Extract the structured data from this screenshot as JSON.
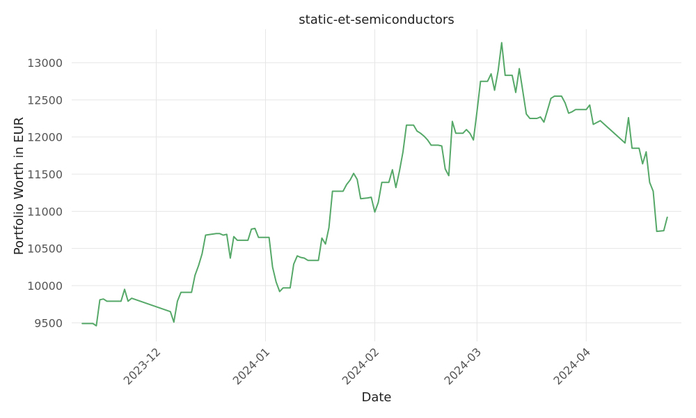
{
  "chart_data": {
    "type": "line",
    "title": "static-et-semiconductors",
    "xlabel": "Date",
    "ylabel": "Portfolio Worth in EUR",
    "ylim": [
      9250,
      13450
    ],
    "xlim": [
      "2023-11-07",
      "2024-04-28"
    ],
    "grid": true,
    "legend": "none",
    "line_color": "#55a868",
    "x_ticks": [
      {
        "date": "2023-12-01",
        "label": "2023-12"
      },
      {
        "date": "2024-01-01",
        "label": "2024-01"
      },
      {
        "date": "2024-02-01",
        "label": "2024-02"
      },
      {
        "date": "2024-03-01",
        "label": "2024-03"
      },
      {
        "date": "2024-04-01",
        "label": "2024-04"
      }
    ],
    "y_ticks": [
      9500,
      10000,
      10500,
      11000,
      11500,
      12000,
      12500,
      13000
    ],
    "series": [
      {
        "points": [
          [
            "2023-11-10",
            9490
          ],
          [
            "2023-11-13",
            9490
          ],
          [
            "2023-11-14",
            9460
          ],
          [
            "2023-11-15",
            9810
          ],
          [
            "2023-11-16",
            9820
          ],
          [
            "2023-11-17",
            9790
          ],
          [
            "2023-11-20",
            9790
          ],
          [
            "2023-11-21",
            9790
          ],
          [
            "2023-11-22",
            9950
          ],
          [
            "2023-11-23",
            9790
          ],
          [
            "2023-11-24",
            9830
          ],
          [
            "2023-12-05",
            9650
          ],
          [
            "2023-12-06",
            9510
          ],
          [
            "2023-12-07",
            9790
          ],
          [
            "2023-12-08",
            9910
          ],
          [
            "2023-12-11",
            9910
          ],
          [
            "2023-12-12",
            10140
          ],
          [
            "2023-12-13",
            10270
          ],
          [
            "2023-12-14",
            10430
          ],
          [
            "2023-12-15",
            10680
          ],
          [
            "2023-12-18",
            10700
          ],
          [
            "2023-12-19",
            10700
          ],
          [
            "2023-12-20",
            10680
          ],
          [
            "2023-12-21",
            10690
          ],
          [
            "2023-12-22",
            10370
          ],
          [
            "2023-12-23",
            10660
          ],
          [
            "2023-12-24",
            10610
          ],
          [
            "2023-12-27",
            10610
          ],
          [
            "2023-12-28",
            10760
          ],
          [
            "2023-12-29",
            10770
          ],
          [
            "2023-12-30",
            10650
          ],
          [
            "2024-01-02",
            10650
          ],
          [
            "2024-01-03",
            10250
          ],
          [
            "2024-01-04",
            10050
          ],
          [
            "2024-01-05",
            9920
          ],
          [
            "2024-01-06",
            9970
          ],
          [
            "2024-01-08",
            9970
          ],
          [
            "2024-01-09",
            10290
          ],
          [
            "2024-01-10",
            10400
          ],
          [
            "2024-01-11",
            10380
          ],
          [
            "2024-01-12",
            10370
          ],
          [
            "2024-01-13",
            10340
          ],
          [
            "2024-01-16",
            10340
          ],
          [
            "2024-01-17",
            10640
          ],
          [
            "2024-01-18",
            10560
          ],
          [
            "2024-01-19",
            10780
          ],
          [
            "2024-01-20",
            11270
          ],
          [
            "2024-01-23",
            11270
          ],
          [
            "2024-01-24",
            11360
          ],
          [
            "2024-01-25",
            11420
          ],
          [
            "2024-01-26",
            11510
          ],
          [
            "2024-01-27",
            11430
          ],
          [
            "2024-01-28",
            11170
          ],
          [
            "2024-01-30",
            11180
          ],
          [
            "2024-01-31",
            11190
          ],
          [
            "2024-02-01",
            10990
          ],
          [
            "2024-02-02",
            11120
          ],
          [
            "2024-02-03",
            11390
          ],
          [
            "2024-02-05",
            11390
          ],
          [
            "2024-02-06",
            11560
          ],
          [
            "2024-02-07",
            11320
          ],
          [
            "2024-02-08",
            11540
          ],
          [
            "2024-02-09",
            11800
          ],
          [
            "2024-02-10",
            12160
          ],
          [
            "2024-02-12",
            12160
          ],
          [
            "2024-02-13",
            12080
          ],
          [
            "2024-02-14",
            12050
          ],
          [
            "2024-02-15",
            12010
          ],
          [
            "2024-02-16",
            11960
          ],
          [
            "2024-02-17",
            11890
          ],
          [
            "2024-02-19",
            11890
          ],
          [
            "2024-02-20",
            11880
          ],
          [
            "2024-02-21",
            11570
          ],
          [
            "2024-02-22",
            11480
          ],
          [
            "2024-02-23",
            12210
          ],
          [
            "2024-02-24",
            12050
          ],
          [
            "2024-02-26",
            12050
          ],
          [
            "2024-02-27",
            12100
          ],
          [
            "2024-02-28",
            12050
          ],
          [
            "2024-02-29",
            11960
          ],
          [
            "2024-03-01",
            12340
          ],
          [
            "2024-03-02",
            12750
          ],
          [
            "2024-03-04",
            12750
          ],
          [
            "2024-03-05",
            12850
          ],
          [
            "2024-03-06",
            12630
          ],
          [
            "2024-03-07",
            12890
          ],
          [
            "2024-03-08",
            13270
          ],
          [
            "2024-03-09",
            12830
          ],
          [
            "2024-03-11",
            12830
          ],
          [
            "2024-03-12",
            12600
          ],
          [
            "2024-03-13",
            12920
          ],
          [
            "2024-03-14",
            12620
          ],
          [
            "2024-03-15",
            12310
          ],
          [
            "2024-03-16",
            12250
          ],
          [
            "2024-03-18",
            12250
          ],
          [
            "2024-03-19",
            12270
          ],
          [
            "2024-03-20",
            12200
          ],
          [
            "2024-03-21",
            12360
          ],
          [
            "2024-03-22",
            12520
          ],
          [
            "2024-03-23",
            12550
          ],
          [
            "2024-03-25",
            12550
          ],
          [
            "2024-03-26",
            12460
          ],
          [
            "2024-03-27",
            12320
          ],
          [
            "2024-03-28",
            12340
          ],
          [
            "2024-03-29",
            12370
          ],
          [
            "2024-03-30",
            12370
          ],
          [
            "2024-04-01",
            12370
          ],
          [
            "2024-04-02",
            12430
          ],
          [
            "2024-04-03",
            12170
          ],
          [
            "2024-04-05",
            12220
          ],
          [
            "2024-04-12",
            11920
          ],
          [
            "2024-04-13",
            12260
          ],
          [
            "2024-04-14",
            11850
          ],
          [
            "2024-04-16",
            11850
          ],
          [
            "2024-04-17",
            11640
          ],
          [
            "2024-04-18",
            11800
          ],
          [
            "2024-04-19",
            11390
          ],
          [
            "2024-04-20",
            11270
          ],
          [
            "2024-04-21",
            10730
          ],
          [
            "2024-04-23",
            10740
          ],
          [
            "2024-04-24",
            10920
          ]
        ]
      }
    ]
  }
}
